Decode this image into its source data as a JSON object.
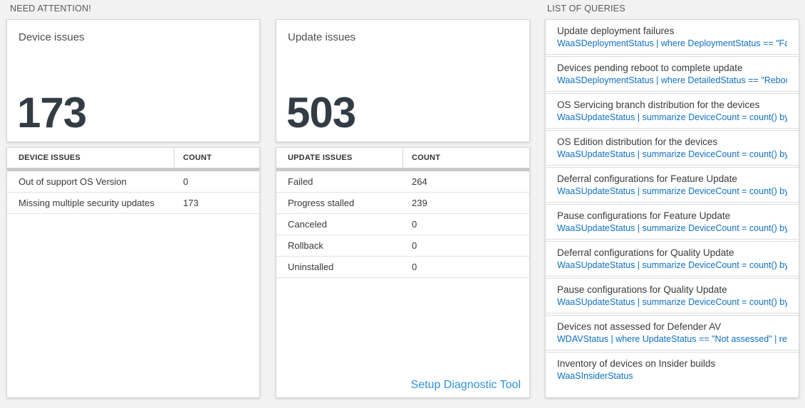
{
  "header": {
    "need_attention": "NEED ATTENTION!",
    "list_of_queries": "LIST OF QUERIES"
  },
  "tiles": {
    "device": {
      "title": "Device issues",
      "count": "173"
    },
    "update": {
      "title": "Update issues",
      "count": "503"
    }
  },
  "device_table": {
    "headers": [
      "DEVICE ISSUES",
      "COUNT"
    ],
    "rows": [
      [
        "Out of support OS Version",
        "0"
      ],
      [
        "Missing multiple security updates",
        "173"
      ]
    ]
  },
  "update_table": {
    "headers": [
      "UPDATE ISSUES",
      "COUNT"
    ],
    "rows": [
      [
        "Failed",
        "264"
      ],
      [
        "Progress stalled",
        "239"
      ],
      [
        "Canceled",
        "0"
      ],
      [
        "Rollback",
        "0"
      ],
      [
        "Uninstalled",
        "0"
      ]
    ],
    "footer_link": "Setup Diagnostic Tool"
  },
  "queries": [
    {
      "title": "Update deployment failures",
      "query": "WaaSDeploymentStatus | where DeploymentStatus == \"Failed\" |..."
    },
    {
      "title": "Devices pending reboot to complete update",
      "query": "WaaSDeploymentStatus | where DetailedStatus == \"Reboot pend..."
    },
    {
      "title": "OS Servicing branch distribution for the devices",
      "query": "WaaSUpdateStatus | summarize DeviceCount = count() by OSSer..."
    },
    {
      "title": "OS Edition distribution for the devices",
      "query": "WaaSUpdateStatus | summarize DeviceCount = count() by OSEdit..."
    },
    {
      "title": "Deferral configurations for Feature Update",
      "query": "WaaSUpdateStatus | summarize DeviceCount = count() by Featur..."
    },
    {
      "title": "Pause configurations for Feature Update",
      "query": "WaaSUpdateStatus | summarize DeviceCount = count() by Featur..."
    },
    {
      "title": "Deferral configurations for Quality Update",
      "query": "WaaSUpdateStatus | summarize DeviceCount = count() by Qualit..."
    },
    {
      "title": "Pause configurations for Quality Update",
      "query": "WaaSUpdateStatus | summarize DeviceCount = count() by Qualit..."
    },
    {
      "title": "Devices not assessed for Defender AV",
      "query": "WDAVStatus | where UpdateStatus == \"Not assessed\" | render ta..."
    },
    {
      "title": "Inventory of devices on Insider builds",
      "query": "WaaSInsiderStatus"
    }
  ],
  "colors": {
    "query_blue": "#0e70c4",
    "link_blue": "#2e93d8",
    "count_text": "#333b44",
    "page_background": "#f2f2f2"
  }
}
